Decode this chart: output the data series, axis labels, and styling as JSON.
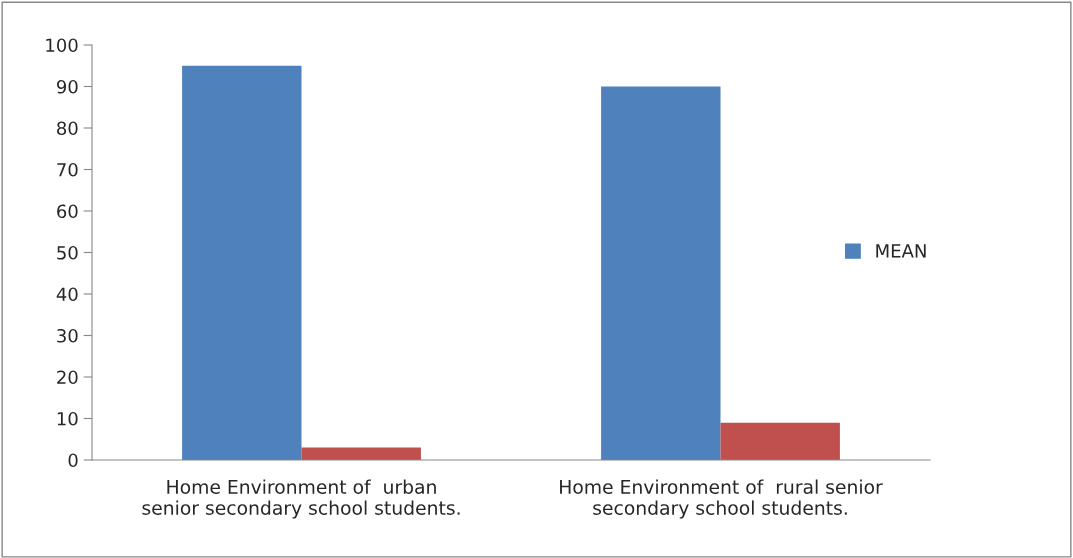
{
  "chart_data": {
    "type": "bar",
    "categories": [
      "Home Environment of  urban\nsenior secondary school students.",
      "Home Environment of  rural senior\nsecondary school students."
    ],
    "series": [
      {
        "name": "MEAN",
        "color": "#4f81bd",
        "values": [
          95,
          90
        ]
      },
      {
        "color": "#c0504d",
        "values": [
          3,
          9
        ]
      }
    ],
    "ylim": [
      0,
      100
    ],
    "yticks": [
      0,
      10,
      20,
      30,
      40,
      50,
      60,
      70,
      80,
      90,
      100
    ],
    "grid": false,
    "legend": "right"
  }
}
